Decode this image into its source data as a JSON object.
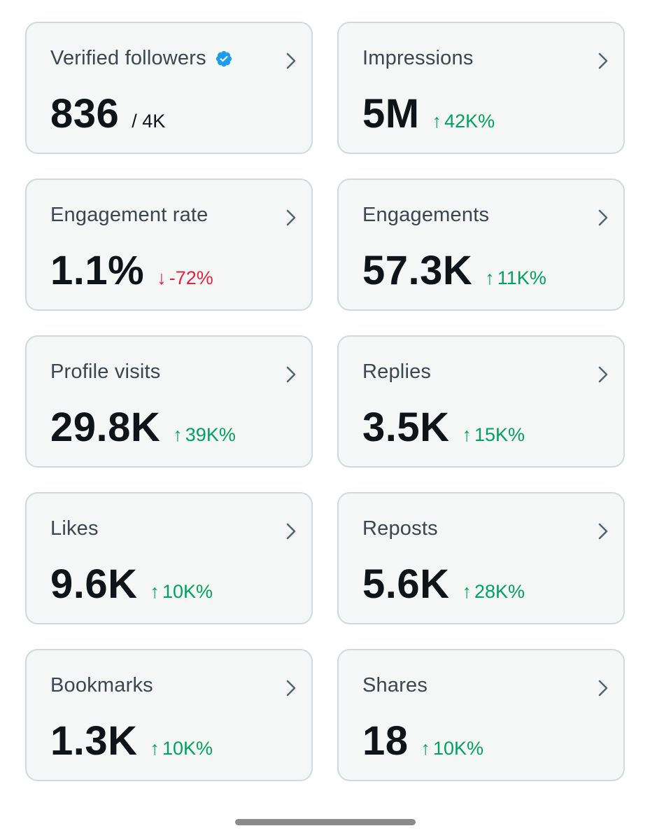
{
  "colors": {
    "up": "#00a25f",
    "down": "#e0243c",
    "verified": "#1d9bf0"
  },
  "cards": [
    {
      "title": "Verified followers",
      "value": "836",
      "sub": "/ 4K",
      "delta": "",
      "direction": "none",
      "verified": true
    },
    {
      "title": "Impressions",
      "value": "5M",
      "sub": "",
      "delta": "42K%",
      "direction": "up",
      "verified": false
    },
    {
      "title": "Engagement rate",
      "value": "1.1%",
      "sub": "",
      "delta": "-72%",
      "direction": "down",
      "verified": false
    },
    {
      "title": "Engagements",
      "value": "57.3K",
      "sub": "",
      "delta": "11K%",
      "direction": "up",
      "verified": false
    },
    {
      "title": "Profile visits",
      "value": "29.8K",
      "sub": "",
      "delta": "39K%",
      "direction": "up",
      "verified": false
    },
    {
      "title": "Replies",
      "value": "3.5K",
      "sub": "",
      "delta": "15K%",
      "direction": "up",
      "verified": false
    },
    {
      "title": "Likes",
      "value": "9.6K",
      "sub": "",
      "delta": "10K%",
      "direction": "up",
      "verified": false
    },
    {
      "title": "Reposts",
      "value": "5.6K",
      "sub": "",
      "delta": "28K%",
      "direction": "up",
      "verified": false
    },
    {
      "title": "Bookmarks",
      "value": "1.3K",
      "sub": "",
      "delta": "10K%",
      "direction": "up",
      "verified": false
    },
    {
      "title": "Shares",
      "value": "18",
      "sub": "",
      "delta": "10K%",
      "direction": "up",
      "verified": false
    }
  ]
}
